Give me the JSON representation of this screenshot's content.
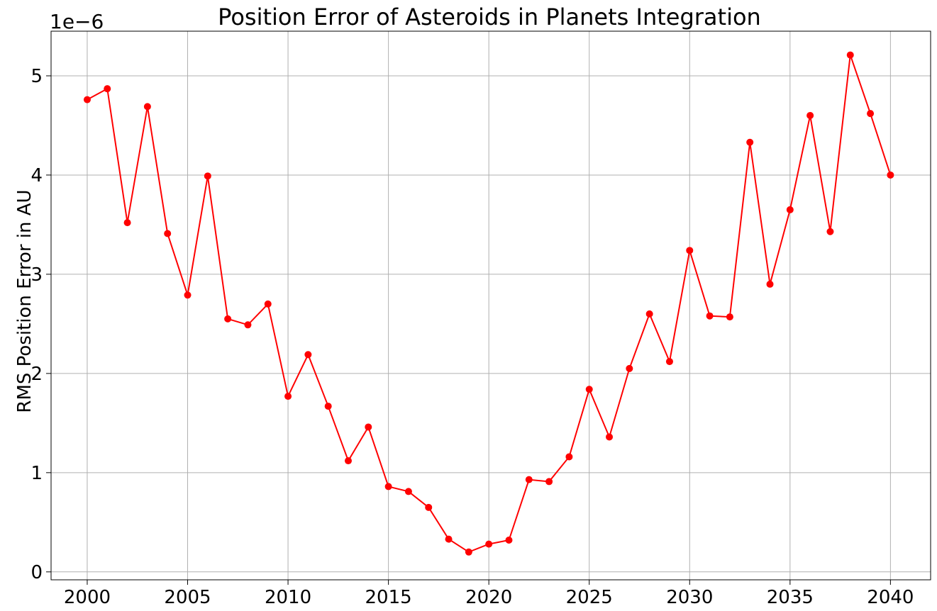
{
  "chart_data": {
    "type": "line",
    "title": "Position Error of Asteroids in Planets Integration",
    "xlabel": "",
    "ylabel": "RMS Position Error in AU",
    "y_offset_label": "1e−6",
    "xlim": [
      1998.2,
      2042.0
    ],
    "ylim": [
      -0.08,
      5.45
    ],
    "xticks": [
      2000,
      2005,
      2010,
      2015,
      2020,
      2025,
      2030,
      2035,
      2040
    ],
    "yticks": [
      0,
      1,
      2,
      3,
      4,
      5
    ],
    "grid": true,
    "color": "#ff0000",
    "x": [
      2000,
      2001,
      2002,
      2003,
      2004,
      2005,
      2006,
      2007,
      2008,
      2009,
      2010,
      2011,
      2012,
      2013,
      2014,
      2015,
      2016,
      2017,
      2018,
      2019,
      2020,
      2021,
      2022,
      2023,
      2024,
      2025,
      2026,
      2027,
      2028,
      2029,
      2030,
      2031,
      2032,
      2033,
      2034,
      2035,
      2036,
      2037,
      2038,
      2039,
      2040
    ],
    "series": [
      {
        "values": [
          4.76,
          4.87,
          3.52,
          4.69,
          3.41,
          2.79,
          3.99,
          2.55,
          2.49,
          2.7,
          1.77,
          2.19,
          1.67,
          1.12,
          1.46,
          0.86,
          0.81,
          0.65,
          0.33,
          0.2,
          0.28,
          0.32,
          0.93,
          0.91,
          1.16,
          1.84,
          1.36,
          2.05,
          2.6,
          2.12,
          3.24,
          2.58,
          2.57,
          4.33,
          2.9,
          3.65,
          4.6,
          3.43,
          5.21,
          4.62,
          4.0
        ]
      }
    ]
  }
}
